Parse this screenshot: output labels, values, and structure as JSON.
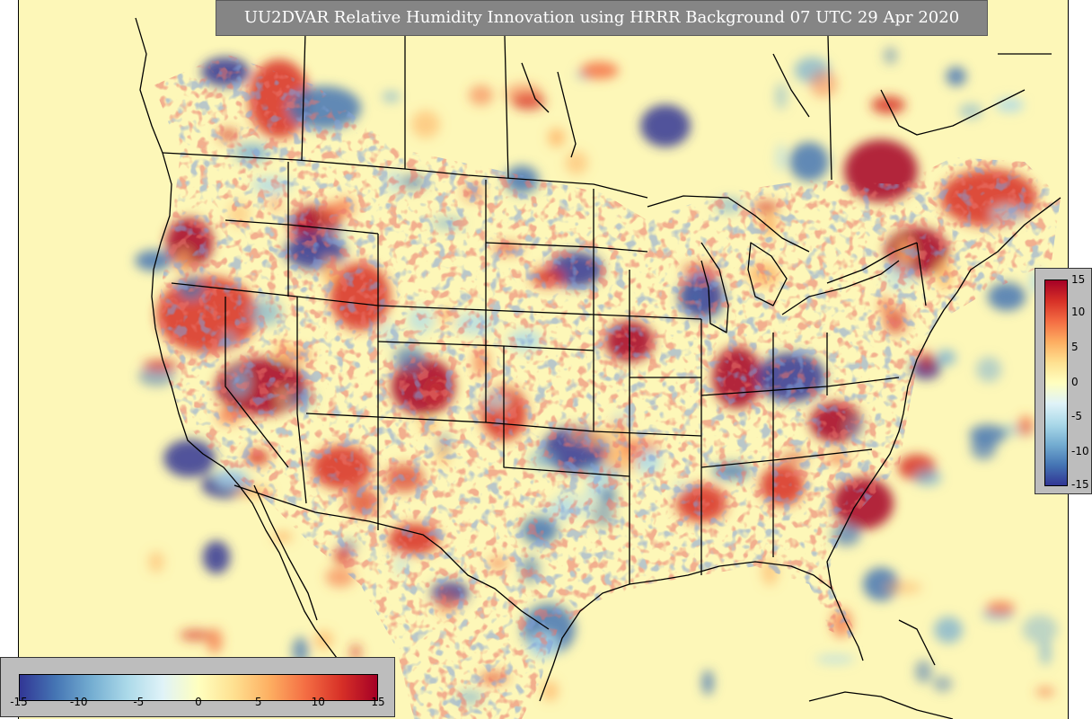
{
  "title": "UU2DVAR Relative Humidity Innovation using HRRR Background 07 UTC 29 Apr 2020",
  "colorbar": {
    "min": -15,
    "max": 15,
    "bottom_ticks": [
      "-15",
      "-10",
      "-5",
      "0",
      "5",
      "10",
      "15"
    ],
    "right_ticks": [
      "15",
      "10",
      "5",
      "0",
      "-5",
      "-10",
      "-15"
    ],
    "colors": [
      "#313695",
      "#4575b4",
      "#74add1",
      "#abd9e9",
      "#e0f3f8",
      "#ffffbf",
      "#fee090",
      "#fdae61",
      "#f46d43",
      "#d73027",
      "#a50026"
    ]
  },
  "map": {
    "background_color": "#fdf7b8",
    "border_color": "#000000"
  }
}
